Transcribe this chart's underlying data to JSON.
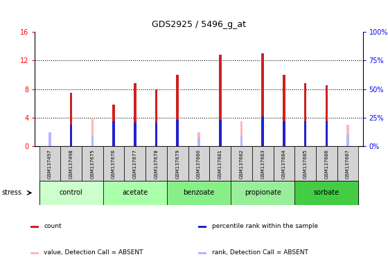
{
  "title": "GDS2925 / 5496_g_at",
  "samples": [
    "GSM137497",
    "GSM137498",
    "GSM137675",
    "GSM137676",
    "GSM137677",
    "GSM137678",
    "GSM137679",
    "GSM137680",
    "GSM137681",
    "GSM137682",
    "GSM137683",
    "GSM137684",
    "GSM137685",
    "GSM137686",
    "GSM137687"
  ],
  "count_values": [
    1.5,
    7.5,
    4.0,
    5.8,
    8.8,
    8.0,
    10.0,
    2.0,
    12.8,
    3.5,
    13.0,
    10.0,
    8.8,
    8.5,
    3.0
  ],
  "rank_values": [
    2.0,
    3.0,
    1.5,
    3.5,
    3.3,
    3.3,
    3.7,
    1.3,
    3.7,
    1.5,
    4.2,
    3.5,
    3.5,
    3.5,
    1.7
  ],
  "absent_flags": [
    true,
    false,
    true,
    false,
    false,
    false,
    false,
    true,
    false,
    true,
    false,
    false,
    false,
    false,
    true
  ],
  "groups": [
    {
      "label": "control",
      "color": "#ccffcc",
      "indices": [
        0,
        1,
        2
      ]
    },
    {
      "label": "acetate",
      "color": "#aaffaa",
      "indices": [
        3,
        4,
        5
      ]
    },
    {
      "label": "benzoate",
      "color": "#88ee88",
      "indices": [
        6,
        7,
        8
      ]
    },
    {
      "label": "propionate",
      "color": "#99ee99",
      "indices": [
        9,
        10,
        11
      ]
    },
    {
      "label": "sorbate",
      "color": "#44cc44",
      "indices": [
        12,
        13,
        14
      ]
    }
  ],
  "ylim_left": [
    0,
    16
  ],
  "ylim_right": [
    0,
    100
  ],
  "yticks_left": [
    0,
    4,
    8,
    12,
    16
  ],
  "yticks_right": [
    0,
    25,
    50,
    75,
    100
  ],
  "color_count": "#cc2222",
  "color_rank": "#2222cc",
  "color_absent_value": "#ffb6b6",
  "color_absent_rank": "#b6b6ff",
  "bar_width": 0.12,
  "cell_bg": "#d3d3d3"
}
